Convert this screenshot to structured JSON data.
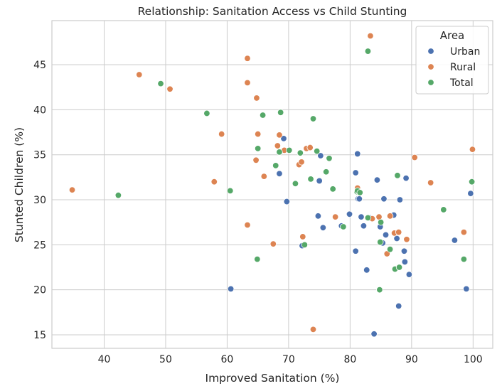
{
  "chart_data": {
    "type": "scatter",
    "title": "Relationship: Sanitation Access vs Child Stunting",
    "xlabel": "Improved Sanitation (%)",
    "ylabel": "Stunted Children (%)",
    "xlim": [
      31.5,
      103.2
    ],
    "ylim": [
      13.5,
      49.9
    ],
    "xticks": [
      40,
      50,
      60,
      70,
      80,
      90,
      100
    ],
    "yticks": [
      15,
      20,
      25,
      30,
      35,
      40,
      45
    ],
    "grid": true,
    "legend": {
      "title": "Area",
      "placement": "top-right"
    },
    "series": [
      {
        "name": "Urban",
        "color": "#4c72b0",
        "points": [
          [
            60.6,
            20.1
          ],
          [
            68.5,
            32.9
          ],
          [
            69.2,
            36.8
          ],
          [
            69.7,
            29.8
          ],
          [
            72.2,
            24.9
          ],
          [
            74.8,
            28.2
          ],
          [
            75.0,
            32.1
          ],
          [
            75.2,
            34.9
          ],
          [
            75.6,
            26.9
          ],
          [
            78.6,
            27.1
          ],
          [
            79.9,
            28.4
          ],
          [
            80.9,
            24.3
          ],
          [
            80.9,
            33.0
          ],
          [
            81.2,
            35.1
          ],
          [
            81.3,
            30.1
          ],
          [
            81.5,
            30.1
          ],
          [
            81.8,
            28.1
          ],
          [
            82.2,
            27.1
          ],
          [
            82.7,
            22.2
          ],
          [
            83.2,
            28.0
          ],
          [
            83.9,
            15.1
          ],
          [
            84.4,
            32.2
          ],
          [
            84.9,
            27.0
          ],
          [
            85.3,
            25.2
          ],
          [
            85.5,
            30.1
          ],
          [
            85.8,
            26.1
          ],
          [
            87.1,
            28.3
          ],
          [
            87.6,
            25.7
          ],
          [
            87.9,
            18.2
          ],
          [
            88.1,
            30.0
          ],
          [
            88.8,
            24.3
          ],
          [
            88.9,
            23.1
          ],
          [
            89.1,
            32.4
          ],
          [
            89.6,
            21.7
          ],
          [
            97.0,
            25.5
          ],
          [
            98.9,
            20.1
          ],
          [
            99.6,
            30.7
          ]
        ]
      },
      {
        "name": "Rural",
        "color": "#dd8452",
        "points": [
          [
            34.8,
            31.1
          ],
          [
            45.7,
            43.9
          ],
          [
            50.7,
            42.3
          ],
          [
            57.9,
            32.0
          ],
          [
            59.1,
            37.3
          ],
          [
            63.3,
            45.7
          ],
          [
            63.3,
            43.0
          ],
          [
            63.3,
            27.2
          ],
          [
            64.7,
            34.4
          ],
          [
            64.8,
            41.3
          ],
          [
            65.0,
            37.3
          ],
          [
            66.0,
            32.6
          ],
          [
            67.5,
            25.1
          ],
          [
            68.2,
            36.0
          ],
          [
            68.5,
            37.2
          ],
          [
            69.3,
            35.5
          ],
          [
            71.7,
            33.9
          ],
          [
            72.1,
            34.2
          ],
          [
            72.3,
            25.9
          ],
          [
            72.9,
            35.7
          ],
          [
            73.5,
            35.8
          ],
          [
            74.0,
            15.6
          ],
          [
            77.6,
            28.1
          ],
          [
            81.2,
            31.3
          ],
          [
            83.3,
            48.2
          ],
          [
            83.6,
            27.9
          ],
          [
            84.7,
            28.1
          ],
          [
            86.0,
            24.0
          ],
          [
            86.5,
            28.2
          ],
          [
            87.2,
            26.3
          ],
          [
            87.9,
            26.4
          ],
          [
            89.2,
            25.6
          ],
          [
            90.5,
            34.7
          ],
          [
            93.1,
            31.9
          ],
          [
            98.5,
            26.4
          ],
          [
            99.9,
            35.6
          ]
        ]
      },
      {
        "name": "Total",
        "color": "#55a868",
        "points": [
          [
            42.3,
            30.5
          ],
          [
            49.2,
            42.9
          ],
          [
            56.7,
            39.6
          ],
          [
            60.5,
            31.0
          ],
          [
            64.9,
            23.4
          ],
          [
            65.0,
            35.7
          ],
          [
            65.8,
            39.4
          ],
          [
            67.9,
            33.8
          ],
          [
            68.5,
            35.3
          ],
          [
            68.7,
            39.7
          ],
          [
            70.1,
            35.5
          ],
          [
            71.1,
            31.8
          ],
          [
            71.9,
            35.2
          ],
          [
            72.6,
            25.0
          ],
          [
            73.6,
            32.3
          ],
          [
            74.0,
            39.0
          ],
          [
            74.6,
            35.4
          ],
          [
            76.1,
            33.1
          ],
          [
            76.6,
            34.6
          ],
          [
            77.2,
            31.2
          ],
          [
            78.9,
            27.0
          ],
          [
            81.1,
            30.9
          ],
          [
            81.2,
            31.0
          ],
          [
            81.6,
            30.8
          ],
          [
            82.9,
            46.5
          ],
          [
            82.9,
            28.0
          ],
          [
            84.9,
            25.3
          ],
          [
            85.0,
            27.5
          ],
          [
            84.8,
            20.0
          ],
          [
            86.5,
            24.5
          ],
          [
            87.3,
            22.3
          ],
          [
            87.7,
            32.7
          ],
          [
            88.0,
            22.5
          ],
          [
            95.2,
            28.9
          ],
          [
            98.5,
            23.4
          ],
          [
            99.8,
            32.0
          ]
        ]
      }
    ]
  }
}
